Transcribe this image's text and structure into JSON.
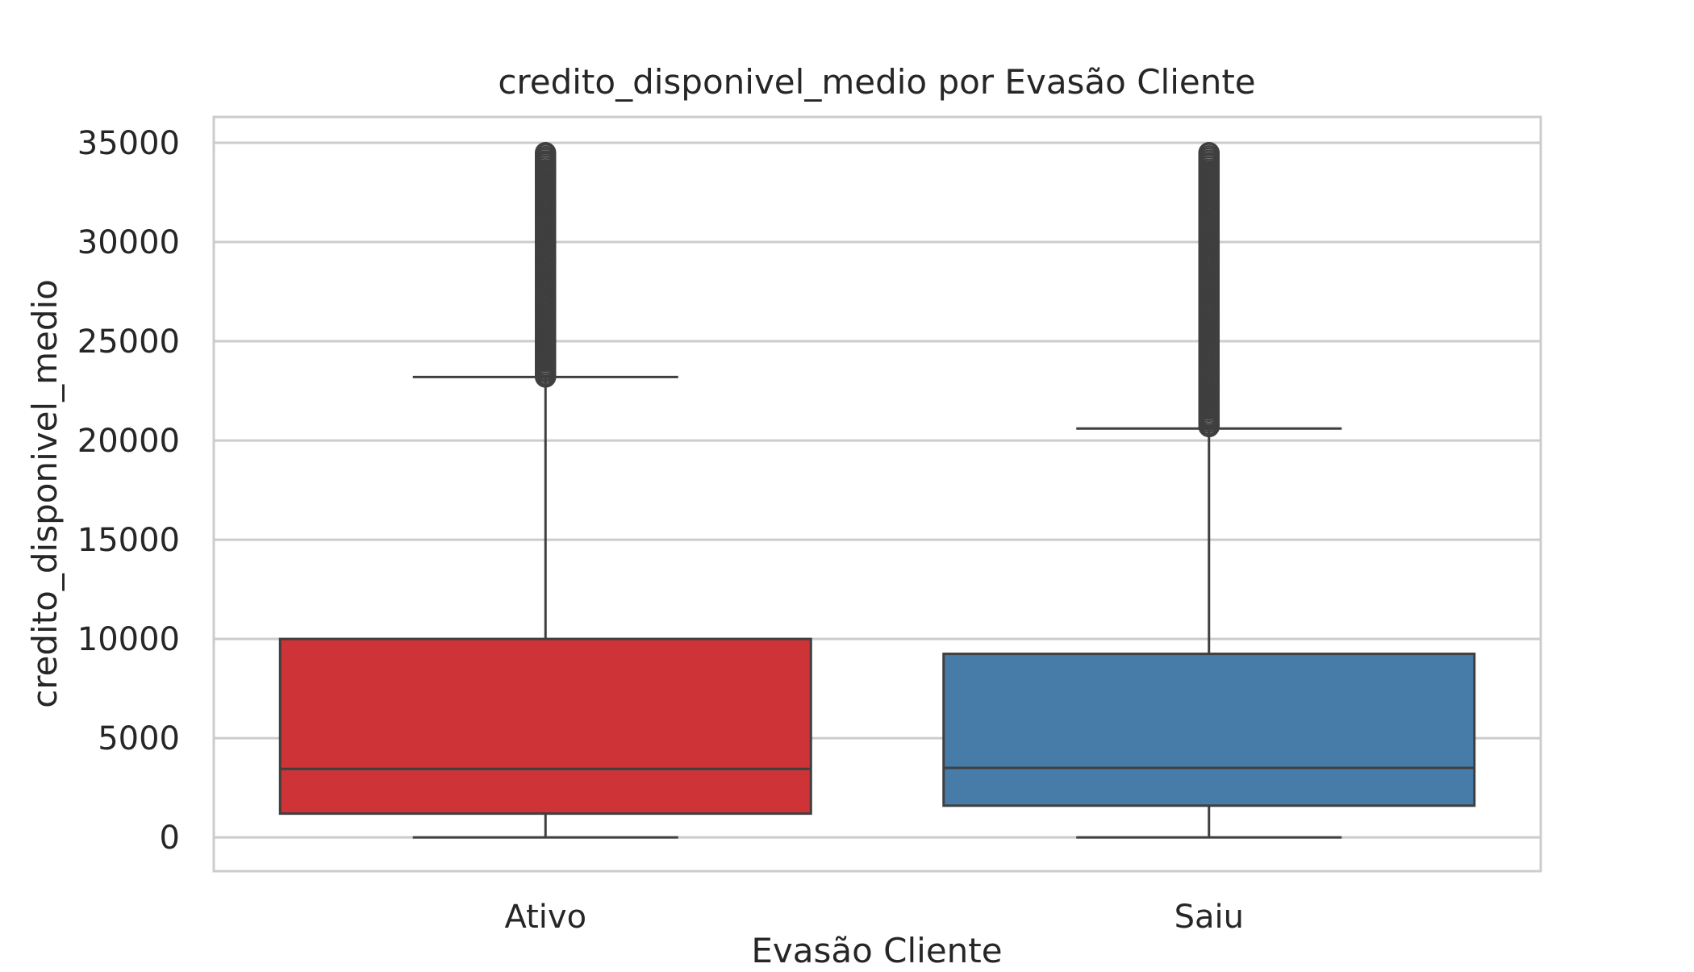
{
  "chart_data": {
    "type": "box",
    "title": "credito_disponivel_medio por Evasão Cliente",
    "xlabel": "Evasão Cliente",
    "ylabel": "credito_disponivel_medio",
    "ylim": [
      -1700,
      36300
    ],
    "yticks": [
      0,
      5000,
      10000,
      15000,
      20000,
      25000,
      30000,
      35000
    ],
    "grid": true,
    "categories": [
      "Ativo",
      "Saiu"
    ],
    "boxes": [
      {
        "category": "Ativo",
        "color": "#cd3337",
        "whisker_low": 0,
        "q1": 1200,
        "median": 3450,
        "q3": 10000,
        "whisker_high": 23200,
        "outlier_range": [
          23200,
          34500
        ],
        "outliers": [
          23300,
          24000,
          25000,
          26000,
          27000,
          28000,
          29000,
          30000,
          31000,
          32000,
          33000,
          33600,
          34000,
          34500
        ]
      },
      {
        "category": "Saiu",
        "color": "#477ca8",
        "whisker_low": 0,
        "q1": 1600,
        "median": 3500,
        "q3": 9250,
        "whisker_high": 20600,
        "outlier_range": [
          20700,
          34500
        ],
        "outliers": [
          20800,
          21200,
          21700,
          22500,
          23300,
          24500,
          25200,
          25800,
          26300,
          27000,
          27600,
          28300,
          29000,
          29600,
          30200,
          30900,
          31700,
          32500,
          33000,
          33500,
          34000,
          34500
        ]
      }
    ]
  }
}
